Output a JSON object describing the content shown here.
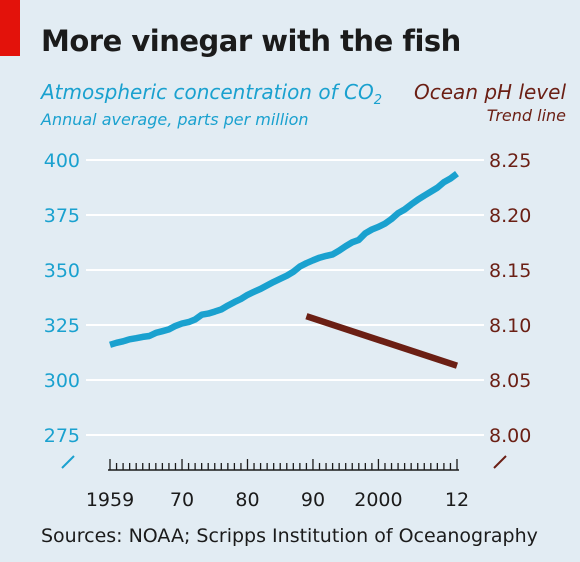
{
  "title": "More vinegar with the fish",
  "subtitle_left": {
    "line1_prefix": "Atmospheric concentration of CO",
    "line1_sub": "2",
    "line2": "Annual average, parts per million"
  },
  "subtitle_right": {
    "line1": "Ocean pH level",
    "line2": "Trend line"
  },
  "source": "Sources: NOAA; Scripps Institution of Oceanography",
  "colors": {
    "co2": "#1aa1cf",
    "ph": "#6b1f14",
    "background": "#e2ecf3",
    "brand_red": "#e3120b"
  },
  "chart_data": {
    "type": "line",
    "x_tick_labels": [
      "1959",
      "70",
      "80",
      "90",
      "2000",
      "12"
    ],
    "x_tick_years": [
      1959,
      1970,
      1980,
      1990,
      2000,
      2012
    ],
    "xlim": [
      1959,
      2012
    ],
    "y_left": {
      "ticks": [
        "400",
        "375",
        "350",
        "325",
        "300",
        "275"
      ],
      "ylim": [
        275,
        400
      ],
      "axis_break": true
    },
    "y_right": {
      "ticks": [
        "8.25",
        "8.20",
        "8.15",
        "8.10",
        "8.05",
        "8.00"
      ],
      "ylim": [
        8.0,
        8.25
      ],
      "axis_break": true
    },
    "grid": true,
    "series": [
      {
        "axis": "left",
        "x": [
          1959,
          1960,
          1961,
          1962,
          1963,
          1964,
          1965,
          1966,
          1967,
          1968,
          1969,
          1970,
          1971,
          1972,
          1973,
          1974,
          1975,
          1976,
          1977,
          1978,
          1979,
          1980,
          1981,
          1982,
          1983,
          1984,
          1985,
          1986,
          1987,
          1988,
          1989,
          1990,
          1991,
          1992,
          1993,
          1994,
          1995,
          1996,
          1997,
          1998,
          1999,
          2000,
          2001,
          2002,
          2003,
          2004,
          2005,
          2006,
          2007,
          2008,
          2009,
          2010,
          2011,
          2012
        ],
        "y": [
          316.0,
          316.9,
          317.6,
          318.5,
          319.0,
          319.6,
          320.0,
          321.4,
          322.2,
          323.0,
          324.6,
          325.7,
          326.3,
          327.5,
          329.7,
          330.2,
          331.1,
          332.1,
          333.8,
          335.4,
          336.8,
          338.7,
          340.1,
          341.4,
          343.0,
          344.6,
          346.0,
          347.4,
          349.2,
          351.6,
          353.1,
          354.4,
          355.6,
          356.4,
          357.1,
          358.8,
          360.8,
          362.6,
          363.7,
          366.7,
          368.4,
          369.6,
          371.1,
          373.2,
          375.8,
          377.5,
          379.8,
          381.9,
          383.8,
          385.6,
          387.4,
          389.9,
          391.6,
          393.8
        ]
      },
      {
        "axis": "right",
        "x": [
          1989,
          2012
        ],
        "y": [
          8.108,
          8.063
        ]
      }
    ]
  }
}
